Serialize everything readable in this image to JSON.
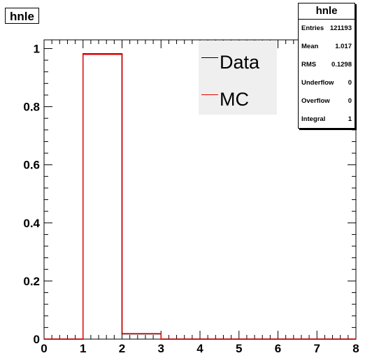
{
  "chart_data": {
    "type": "bar",
    "title": "hnle",
    "xlabel": "",
    "ylabel": "",
    "xlim": [
      0,
      8
    ],
    "ylim": [
      0,
      1.03
    ],
    "bin_edges": [
      0,
      1,
      2,
      3,
      4,
      5,
      6,
      7,
      8
    ],
    "x_ticks": [
      "0",
      "1",
      "2",
      "3",
      "4",
      "5",
      "6",
      "7",
      "8"
    ],
    "y_ticks": [
      "0",
      "0.2",
      "0.4",
      "0.6",
      "0.8",
      "1"
    ],
    "grid": false,
    "legend": "top-right",
    "series": [
      {
        "name": "Data",
        "color": "#000000",
        "values": [
          0,
          0.982,
          0.018,
          0,
          0,
          0,
          0,
          0
        ]
      },
      {
        "name": "MC",
        "color": "#e00000",
        "values": [
          0,
          0.98,
          0.019,
          0,
          0,
          0,
          0,
          0
        ]
      }
    ],
    "stats": {
      "title": "hnle",
      "rows": [
        {
          "label": "Entries",
          "value": "121193"
        },
        {
          "label": "Mean",
          "value": "1.017"
        },
        {
          "label": "RMS",
          "value": "0.1298"
        },
        {
          "label": "Underflow",
          "value": "0"
        },
        {
          "label": "Overflow",
          "value": "0"
        },
        {
          "label": "Integral",
          "value": "1"
        }
      ]
    }
  }
}
